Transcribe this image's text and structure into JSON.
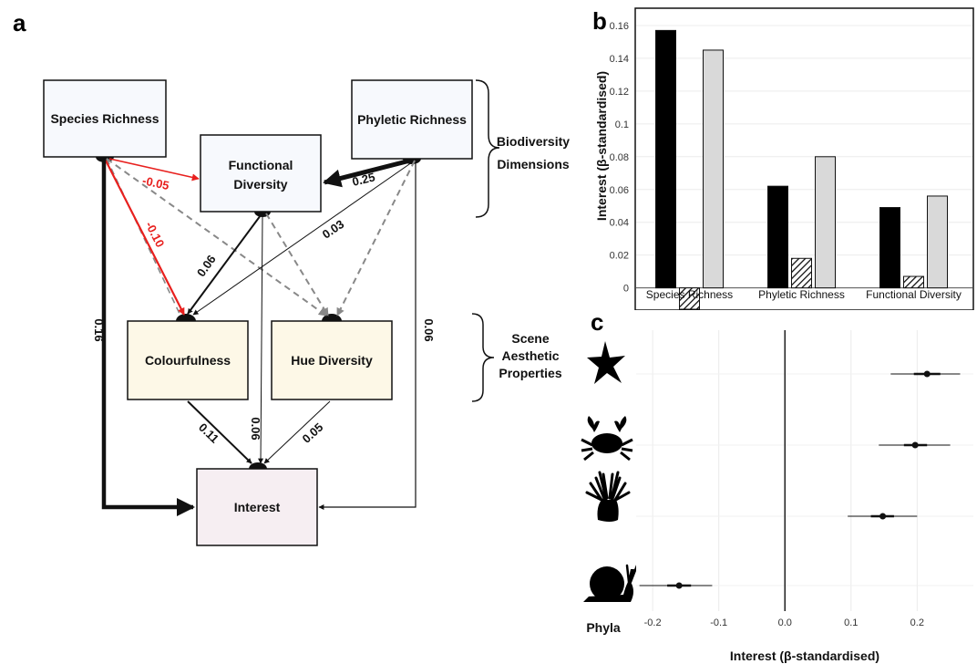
{
  "panels": {
    "a": "a",
    "b": "b",
    "c": "c"
  },
  "diagram": {
    "boxes": {
      "species_richness": "Species Richness",
      "phyletic_richness": "Phyletic Richness",
      "functional_diversity": [
        "Functional",
        "Diversity"
      ],
      "colourfulness": "Colourfulness",
      "hue_diversity": "Hue Diversity",
      "interest": "Interest"
    },
    "groups": {
      "biodiversity": [
        "Biodiversity",
        "Dimensions"
      ],
      "aesthetic": [
        "Scene",
        "Aesthetic",
        "Properties"
      ]
    },
    "coefficients": {
      "sr_fd": "-0.05",
      "sr_col": "-0.10",
      "sr_int": "0.16",
      "pr_fd": "0.25",
      "pr_hue": "0.03",
      "pr_int": "0.06",
      "fd_col": "0.06",
      "fd_int": "0.06",
      "col_int": "0.11",
      "hue_int": "0.05"
    },
    "colors": {
      "negative": "#e8201e",
      "positive": "#111111",
      "nonsignificant": "#888888"
    }
  },
  "chart_data": [
    {
      "type": "bar",
      "categories": [
        "Species Richness",
        "Phyletic Richness",
        "Functional Diversity"
      ],
      "series": [
        {
          "values": [
            0.157,
            0.062,
            0.049
          ],
          "fill": "#000000"
        },
        {
          "values": [
            -0.013,
            0.018,
            0.007
          ],
          "fill": "hatched"
        },
        {
          "values": [
            0.145,
            0.08,
            0.056
          ],
          "fill": "#d9d9d9"
        }
      ],
      "ylabel": "Interest (β-standardised)",
      "ylim": [
        -0.013,
        0.17
      ],
      "yticks": [
        "0",
        "0.02",
        "0.04",
        "0.06",
        "0.08",
        "0.1",
        "0.12",
        "0.14",
        "0.16"
      ],
      "yticks_values": [
        0,
        0.02,
        0.04,
        0.06,
        0.08,
        0.1,
        0.12,
        0.14,
        0.16
      ]
    },
    {
      "type": "scatter",
      "categories": [
        "sea star",
        "crab",
        "sea anemone",
        "snail"
      ],
      "estimates": [
        0.215,
        0.197,
        0.148,
        -0.16
      ],
      "ci_outer": [
        [
          0.16,
          0.265
        ],
        [
          0.142,
          0.25
        ],
        [
          0.095,
          0.2
        ],
        [
          -0.22,
          -0.11
        ]
      ],
      "ci_inner": [
        [
          0.195,
          0.235
        ],
        [
          0.18,
          0.215
        ],
        [
          0.13,
          0.165
        ],
        [
          -0.178,
          -0.142
        ]
      ],
      "xlabel": "Interest (β-standardised)",
      "ylabel": "Phyla",
      "xlim": [
        -0.225,
        0.285
      ],
      "xticks": [
        "-0.2",
        "-0.1",
        "0.0",
        "0.1",
        "0.2"
      ],
      "xticks_values": [
        -0.2,
        -0.1,
        0.0,
        0.1,
        0.2
      ],
      "icons": [
        "starfish-icon",
        "crab-icon",
        "anemone-icon",
        "snail-icon"
      ]
    }
  ]
}
